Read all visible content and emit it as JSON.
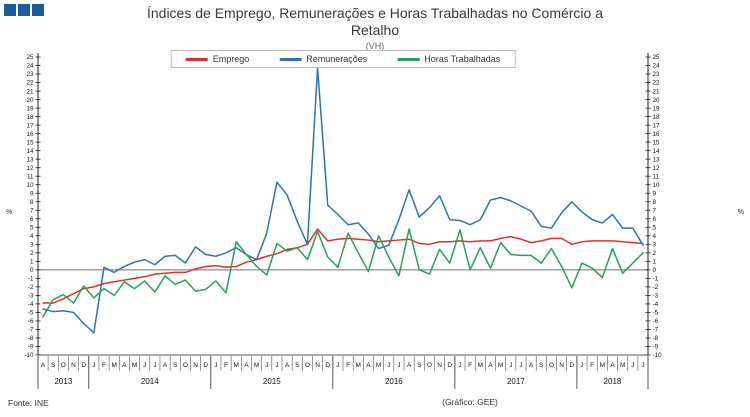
{
  "brand": {
    "squares_color": "#1b5c9e",
    "squares_count": 3
  },
  "header": {
    "title_line1": "Índices de Emprego, Remunerações e Horas Trabalhadas no Comércio a",
    "title_line2": "Retalho",
    "subtitle": "(VH)"
  },
  "legend": {
    "items": [
      {
        "label": "Emprego",
        "color": "#e03127"
      },
      {
        "label": "Remunerações",
        "color": "#2e74b5"
      },
      {
        "label": "Horas Trabalhadas",
        "color": "#2aa158"
      }
    ]
  },
  "footer": {
    "source": "Fonte: INE",
    "credit": "(Gráfico: GEE)"
  },
  "chart_data": {
    "type": "line",
    "title": "Índices de Emprego, Remunerações e Horas Trabalhadas no Comércio a Retalho",
    "subtitle": "(VH)",
    "ylabel": "%",
    "ylim": [
      -10,
      25
    ],
    "y_tick_step": 1,
    "grid": "zero-line-only",
    "legend_position": "top-center",
    "x_unit": "month",
    "x_range": "2013-08 to 2018-07",
    "month_letters": [
      "A",
      "S",
      "O",
      "N",
      "D",
      "J",
      "F",
      "M",
      "A",
      "M",
      "J",
      "J",
      "A",
      "S",
      "O",
      "N",
      "D",
      "J",
      "F",
      "M",
      "A",
      "M",
      "J",
      "J",
      "A",
      "S",
      "O",
      "N",
      "D",
      "J",
      "F",
      "M",
      "A",
      "M",
      "J",
      "J",
      "A",
      "S",
      "O",
      "N",
      "D",
      "J",
      "F",
      "M",
      "A",
      "M",
      "J",
      "J",
      "A",
      "S",
      "O",
      "N",
      "D",
      "J",
      "F",
      "M",
      "A",
      "M",
      "J",
      "J"
    ],
    "years": [
      {
        "label": "2013",
        "months": 5
      },
      {
        "label": "2014",
        "months": 12
      },
      {
        "label": "2015",
        "months": 12
      },
      {
        "label": "2016",
        "months": 12
      },
      {
        "label": "2017",
        "months": 12
      },
      {
        "label": "2018",
        "months": 7
      }
    ],
    "series": [
      {
        "name": "Emprego",
        "color": "#e03127",
        "values": [
          -3.9,
          -3.9,
          -3.4,
          -2.8,
          -2.2,
          -2.0,
          -1.6,
          -1.4,
          -1.2,
          -1.0,
          -0.8,
          -0.5,
          -0.4,
          -0.3,
          -0.3,
          0.1,
          0.4,
          0.5,
          0.3,
          0.4,
          0.9,
          1.2,
          1.6,
          1.9,
          2.4,
          2.6,
          3.0,
          4.8,
          3.4,
          3.6,
          3.7,
          3.6,
          3.5,
          3.3,
          3.4,
          3.5,
          3.6,
          3.1,
          3.0,
          3.3,
          3.3,
          3.4,
          3.3,
          3.4,
          3.4,
          3.7,
          3.9,
          3.6,
          3.2,
          3.4,
          3.7,
          3.7,
          3.0,
          3.3,
          3.4,
          3.4,
          3.4,
          3.3,
          3.2,
          3.1
        ]
      },
      {
        "name": "Remunerações",
        "color": "#2e74b5",
        "values": [
          -4.6,
          -4.9,
          -4.8,
          -5.0,
          -6.3,
          -7.4,
          0.3,
          -0.3,
          0.4,
          0.9,
          1.2,
          0.6,
          1.6,
          1.7,
          0.8,
          2.7,
          1.8,
          1.6,
          2.0,
          2.6,
          1.8,
          1.2,
          4.3,
          10.3,
          8.8,
          5.7,
          3.0,
          23.7,
          7.6,
          6.5,
          5.3,
          5.5,
          4.2,
          2.5,
          2.9,
          5.9,
          9.4,
          6.2,
          7.3,
          8.7,
          5.9,
          5.8,
          5.3,
          5.9,
          8.2,
          8.5,
          8.1,
          7.5,
          6.9,
          5.1,
          4.9,
          6.7,
          8.0,
          6.8,
          5.9,
          5.5,
          6.5,
          4.9,
          4.9,
          2.9
        ]
      },
      {
        "name": "Horas Trabalhadas",
        "color": "#2aa158",
        "values": [
          -5.5,
          -3.5,
          -2.9,
          -3.9,
          -1.9,
          -3.3,
          -2.2,
          -3.0,
          -1.4,
          -2.2,
          -1.3,
          -2.6,
          -0.7,
          -1.7,
          -1.2,
          -2.5,
          -2.3,
          -1.3,
          -2.7,
          3.3,
          1.8,
          0.4,
          -0.6,
          3.1,
          2.2,
          2.6,
          1.2,
          4.5,
          1.5,
          0.3,
          4.3,
          2.0,
          -0.2,
          4.0,
          1.5,
          -0.7,
          4.8,
          0.0,
          -0.5,
          2.4,
          0.8,
          4.7,
          0.0,
          2.6,
          0.2,
          3.2,
          1.8,
          1.7,
          1.7,
          0.8,
          2.5,
          0.4,
          -2.1,
          0.8,
          0.2,
          -0.9,
          2.5,
          -0.4,
          0.8,
          2.0
        ]
      }
    ]
  }
}
